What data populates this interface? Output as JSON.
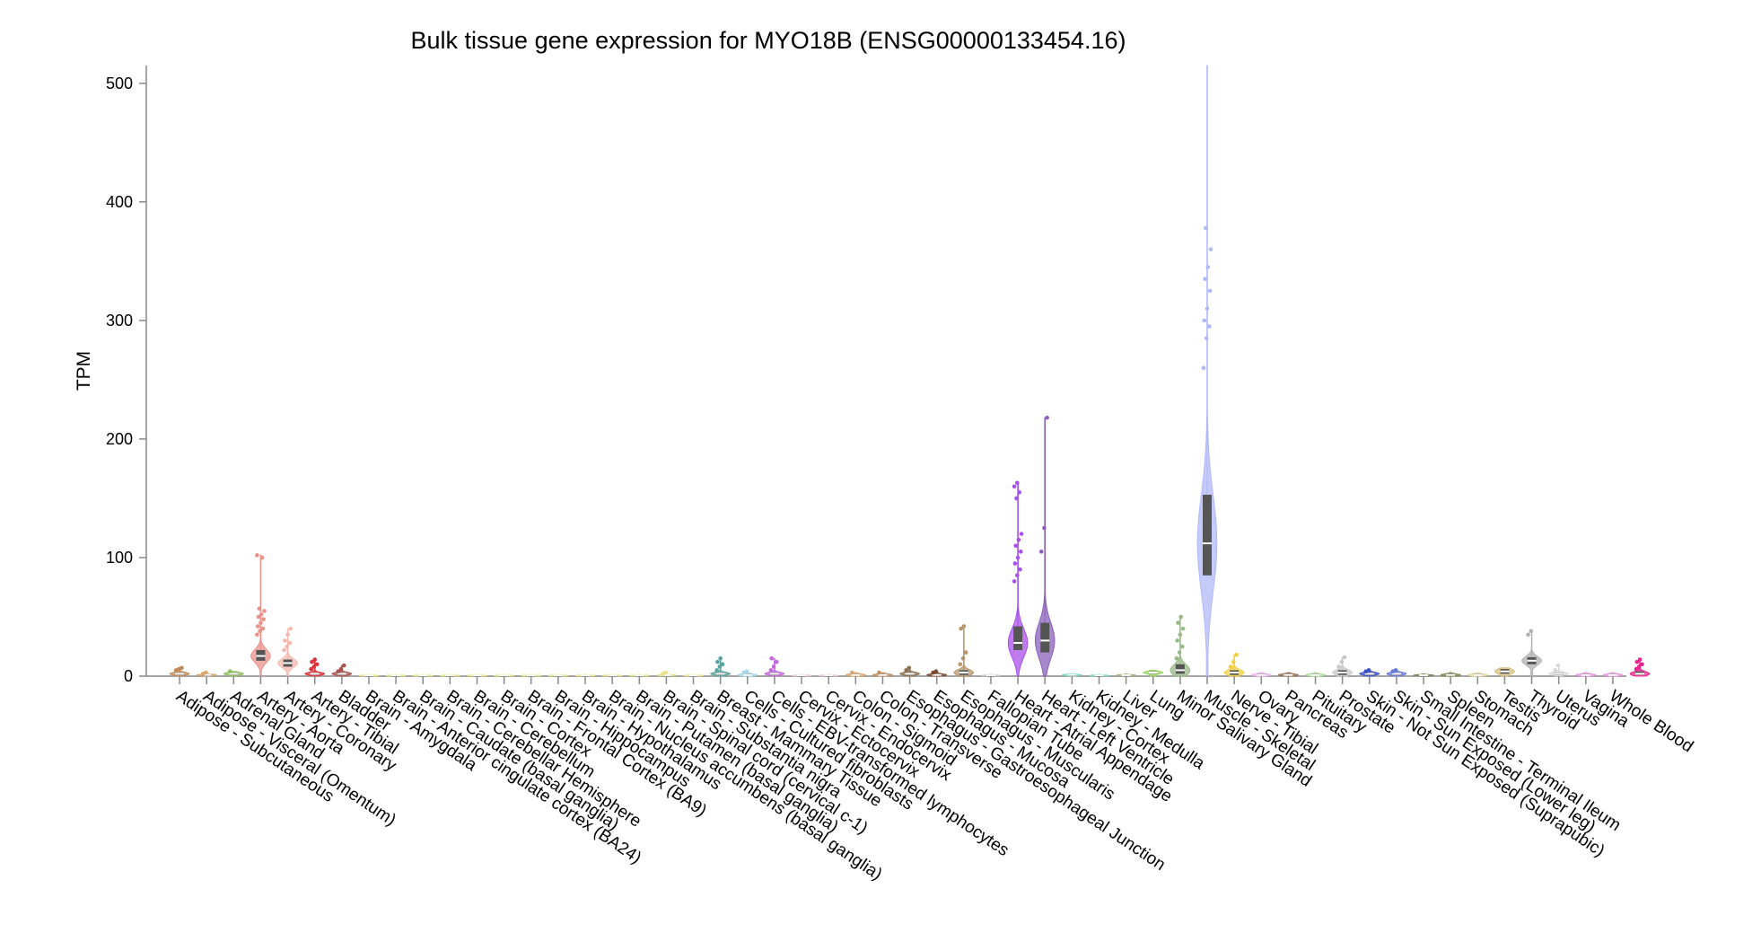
{
  "chart_data": {
    "type": "violin",
    "title": "Bulk tissue gene expression for MYO18B (ENSG00000133454.16)",
    "xlabel": "",
    "ylabel": "TPM",
    "ylim": [
      0,
      515
    ],
    "yticks": [
      0,
      100,
      200,
      300,
      400,
      500
    ],
    "grid": false,
    "legend": "none",
    "categories": [
      "Adipose - Subcutaneous",
      "Adipose - Visceral (Omentum)",
      "Adrenal Gland",
      "Artery - Aorta",
      "Artery - Coronary",
      "Artery - Tibial",
      "Bladder",
      "Brain - Amygdala",
      "Brain - Anterior cingulate cortex (BA24)",
      "Brain - Caudate (basal ganglia)",
      "Brain - Cerebellar Hemisphere",
      "Brain - Cerebellum",
      "Brain - Cortex",
      "Brain - Frontal Cortex (BA9)",
      "Brain - Hippocampus",
      "Brain - Hypothalamus",
      "Brain - Nucleus accumbens (basal ganglia)",
      "Brain - Putamen (basal ganglia)",
      "Brain - Spinal cord (cervical c-1)",
      "Brain - Substantia nigra",
      "Breast - Mammary Tissue",
      "Cells - Cultured fibroblasts",
      "Cells - EBV-transformed lymphocytes",
      "Cervix - Ectocervix",
      "Cervix - Endocervix",
      "Colon - Sigmoid",
      "Colon - Transverse",
      "Esophagus - Gastroesophageal Junction",
      "Esophagus - Mucosa",
      "Esophagus - Muscularis",
      "Fallopian Tube",
      "Heart - Atrial Appendage",
      "Heart - Left Ventricle",
      "Kidney - Cortex",
      "Kidney - Medulla",
      "Liver",
      "Lung",
      "Minor Salivary Gland",
      "Muscle - Skeletal",
      "Nerve - Tibial",
      "Ovary",
      "Pancreas",
      "Pituitary",
      "Prostate",
      "Skin - Not Sun Exposed (Suprapubic)",
      "Skin - Sun Exposed (Lower leg)",
      "Small Intestine - Terminal Ileum",
      "Spleen",
      "Stomach",
      "Testis",
      "Thyroid",
      "Uterus",
      "Vagina",
      "Whole Blood"
    ],
    "series": [
      {
        "median": 2.0,
        "q1": 1.0,
        "q3": 3.0,
        "max": 7,
        "outliers": [
          5,
          6,
          7
        ],
        "color": "#c28a5a"
      },
      {
        "median": 1.0,
        "q1": 0.5,
        "q3": 1.5,
        "max": 3,
        "outliers": [
          2,
          3
        ],
        "color": "#d9a86c"
      },
      {
        "median": 2.0,
        "q1": 1.0,
        "q3": 3.0,
        "max": 4,
        "outliers": [
          4
        ],
        "color": "#8fbf5a"
      },
      {
        "median": 17.0,
        "q1": 13.0,
        "q3": 22.0,
        "max": 102,
        "outliers": [
          35,
          38,
          40,
          42,
          45,
          48,
          50,
          52,
          55,
          57,
          100,
          102
        ],
        "color": "#e8928a"
      },
      {
        "median": 11.0,
        "q1": 8.0,
        "q3": 14.0,
        "max": 40,
        "outliers": [
          22,
          25,
          28,
          30,
          35,
          40
        ],
        "color": "#f4b8ae"
      },
      {
        "median": 2.0,
        "q1": 1.0,
        "q3": 3.0,
        "max": 14,
        "outliers": [
          6,
          8,
          10,
          12,
          14
        ],
        "color": "#d9323a"
      },
      {
        "median": 2.0,
        "q1": 1.0,
        "q3": 3.0,
        "max": 9,
        "outliers": [
          4,
          6,
          9
        ],
        "color": "#a8504a"
      },
      {
        "median": 0.5,
        "q1": 0.3,
        "q3": 0.8,
        "max": 1.5,
        "outliers": [],
        "color": "#e9e389"
      },
      {
        "median": 0.5,
        "q1": 0.3,
        "q3": 0.8,
        "max": 1.5,
        "outliers": [],
        "color": "#e9e389"
      },
      {
        "median": 0.5,
        "q1": 0.3,
        "q3": 0.8,
        "max": 1.5,
        "outliers": [],
        "color": "#e9e389"
      },
      {
        "median": 0.5,
        "q1": 0.3,
        "q3": 0.8,
        "max": 1.5,
        "outliers": [],
        "color": "#e9e389"
      },
      {
        "median": 0.5,
        "q1": 0.3,
        "q3": 0.8,
        "max": 1.5,
        "outliers": [],
        "color": "#e9e389"
      },
      {
        "median": 0.5,
        "q1": 0.3,
        "q3": 0.8,
        "max": 1.5,
        "outliers": [],
        "color": "#e9e389"
      },
      {
        "median": 0.5,
        "q1": 0.3,
        "q3": 0.8,
        "max": 1.5,
        "outliers": [],
        "color": "#e9e389"
      },
      {
        "median": 0.5,
        "q1": 0.3,
        "q3": 0.8,
        "max": 1.5,
        "outliers": [],
        "color": "#e9e389"
      },
      {
        "median": 0.5,
        "q1": 0.3,
        "q3": 0.8,
        "max": 1.5,
        "outliers": [],
        "color": "#e9e389"
      },
      {
        "median": 0.5,
        "q1": 0.3,
        "q3": 0.8,
        "max": 1.5,
        "outliers": [],
        "color": "#e9e389"
      },
      {
        "median": 0.5,
        "q1": 0.3,
        "q3": 0.8,
        "max": 1.5,
        "outliers": [],
        "color": "#e9e389"
      },
      {
        "median": 0.8,
        "q1": 0.4,
        "q3": 1.2,
        "max": 3,
        "outliers": [
          2,
          3
        ],
        "color": "#e9e389"
      },
      {
        "median": 0.5,
        "q1": 0.3,
        "q3": 0.8,
        "max": 1.5,
        "outliers": [],
        "color": "#e9e389"
      },
      {
        "median": 2.0,
        "q1": 1.0,
        "q3": 3.0,
        "max": 15,
        "outliers": [
          5,
          8,
          10,
          12,
          15
        ],
        "color": "#5aa39c"
      },
      {
        "median": 1.0,
        "q1": 0.5,
        "q3": 2.0,
        "max": 4,
        "outliers": [
          3,
          4
        ],
        "color": "#a8d8e8"
      },
      {
        "median": 2.0,
        "q1": 1.0,
        "q3": 3.0,
        "max": 15,
        "outliers": [
          5,
          8,
          12,
          15
        ],
        "color": "#c06ad8"
      },
      {
        "median": 0.5,
        "q1": 0.3,
        "q3": 0.8,
        "max": 1.5,
        "outliers": [],
        "color": "#e8c8e0"
      },
      {
        "median": 0.5,
        "q1": 0.3,
        "q3": 0.8,
        "max": 1.5,
        "outliers": [],
        "color": "#e8c8e0"
      },
      {
        "median": 1.0,
        "q1": 0.5,
        "q3": 2.0,
        "max": 3,
        "outliers": [
          3
        ],
        "color": "#d8a870"
      },
      {
        "median": 1.0,
        "q1": 0.5,
        "q3": 2.0,
        "max": 3,
        "outliers": [
          3
        ],
        "color": "#c09060"
      },
      {
        "median": 2.0,
        "q1": 1.0,
        "q3": 3.0,
        "max": 7,
        "outliers": [
          5,
          7
        ],
        "color": "#8a7050"
      },
      {
        "median": 1.0,
        "q1": 0.5,
        "q3": 2.0,
        "max": 4,
        "outliers": [
          3,
          4
        ],
        "color": "#7a4a30"
      },
      {
        "median": 3.0,
        "q1": 1.0,
        "q3": 5.0,
        "max": 42,
        "outliers": [
          10,
          15,
          20,
          40,
          42
        ],
        "color": "#b8956a"
      },
      {
        "median": 0.5,
        "q1": 0.3,
        "q3": 0.8,
        "max": 1.5,
        "outliers": [],
        "color": "#c8c8c8"
      },
      {
        "median": 28.0,
        "q1": 22.0,
        "q3": 42.0,
        "max": 163,
        "outliers": [
          80,
          85,
          90,
          95,
          100,
          105,
          110,
          115,
          120,
          150,
          155,
          160,
          163
        ],
        "color": "#a850e8"
      },
      {
        "median": 30.0,
        "q1": 20.0,
        "q3": 45.0,
        "max": 218,
        "outliers": [
          105,
          125,
          218
        ],
        "color": "#8a60b8"
      },
      {
        "median": 1.0,
        "q1": 0.5,
        "q3": 1.5,
        "max": 2,
        "outliers": [],
        "color": "#80d8c8"
      },
      {
        "median": 0.5,
        "q1": 0.3,
        "q3": 0.8,
        "max": 1.5,
        "outliers": [],
        "color": "#80d8c8"
      },
      {
        "median": 0.8,
        "q1": 0.4,
        "q3": 1.2,
        "max": 2,
        "outliers": [],
        "color": "#a8b880"
      },
      {
        "median": 3.0,
        "q1": 2.0,
        "q3": 4.0,
        "max": 5,
        "outliers": [],
        "color": "#9ad860"
      },
      {
        "median": 5.0,
        "q1": 2.0,
        "q3": 10.0,
        "max": 50,
        "outliers": [
          15,
          20,
          25,
          30,
          35,
          40,
          45,
          50
        ],
        "color": "#98b888"
      },
      {
        "median": 112.0,
        "q1": 85.0,
        "q3": 153.0,
        "max": 515,
        "outliers": [
          260,
          285,
          295,
          300,
          310,
          325,
          335,
          345,
          360,
          378
        ],
        "color": "#b0b8f8"
      },
      {
        "median": 3.0,
        "q1": 1.0,
        "q3": 5.0,
        "max": 18,
        "outliers": [
          8,
          12,
          18
        ],
        "color": "#f0d040"
      },
      {
        "median": 1.0,
        "q1": 0.5,
        "q3": 2.0,
        "max": 3,
        "outliers": [],
        "color": "#f0b0f0"
      },
      {
        "median": 1.0,
        "q1": 0.5,
        "q3": 2.0,
        "max": 3,
        "outliers": [],
        "color": "#9a7050"
      },
      {
        "median": 1.0,
        "q1": 0.5,
        "q3": 2.0,
        "max": 3,
        "outliers": [],
        "color": "#b0e0a0"
      },
      {
        "median": 3.0,
        "q1": 1.0,
        "q3": 5.0,
        "max": 16,
        "outliers": [
          8,
          12,
          16
        ],
        "color": "#c8c8c8"
      },
      {
        "median": 2.0,
        "q1": 1.0,
        "q3": 3.0,
        "max": 5,
        "outliers": [
          4,
          5
        ],
        "color": "#3a50c8"
      },
      {
        "median": 2.0,
        "q1": 1.0,
        "q3": 3.0,
        "max": 5,
        "outliers": [
          4,
          5
        ],
        "color": "#6878d8"
      },
      {
        "median": 0.8,
        "q1": 0.4,
        "q3": 1.2,
        "max": 2,
        "outliers": [],
        "color": "#7a8a50"
      },
      {
        "median": 1.0,
        "q1": 0.5,
        "q3": 2.0,
        "max": 3,
        "outliers": [],
        "color": "#7a8a50"
      },
      {
        "median": 1.0,
        "q1": 0.5,
        "q3": 2.0,
        "max": 3,
        "outliers": [],
        "color": "#e8d8a0"
      },
      {
        "median": 4.0,
        "q1": 2.0,
        "q3": 6.0,
        "max": 7,
        "outliers": [],
        "color": "#d8c080"
      },
      {
        "median": 13.0,
        "q1": 10.0,
        "q3": 16.0,
        "max": 38,
        "outliers": [
          35,
          38
        ],
        "color": "#b0b0b0"
      },
      {
        "median": 2.0,
        "q1": 1.0,
        "q3": 3.0,
        "max": 9,
        "outliers": [
          5,
          9
        ],
        "color": "#d8d8d8"
      },
      {
        "median": 1.0,
        "q1": 0.5,
        "q3": 2.0,
        "max": 3,
        "outliers": [],
        "color": "#e898e0"
      },
      {
        "median": 1.0,
        "q1": 0.5,
        "q3": 2.0,
        "max": 3,
        "outliers": [],
        "color": "#e898e0"
      },
      {
        "median": 2.0,
        "q1": 1.0,
        "q3": 4.0,
        "max": 14,
        "outliers": [
          6,
          8,
          10,
          12,
          14
        ],
        "color": "#e8248c"
      }
    ]
  }
}
